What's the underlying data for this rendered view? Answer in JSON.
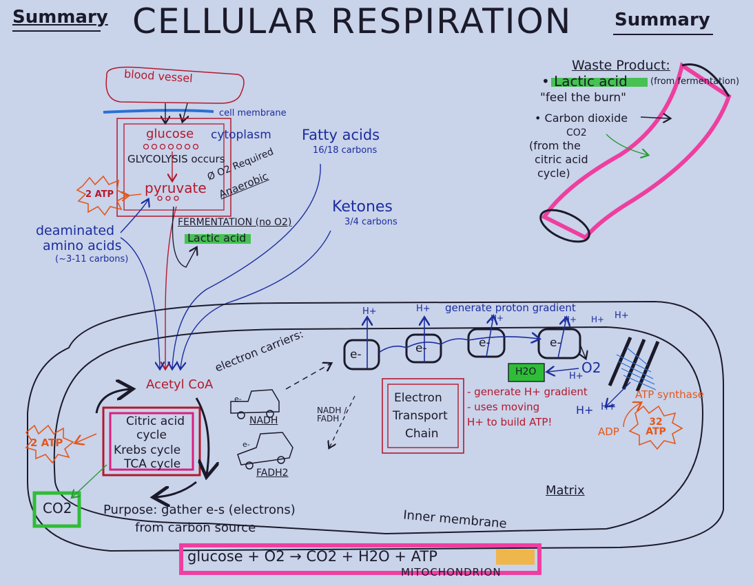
{
  "colors": {
    "background": "#c9d3ea",
    "ink": "#1a1a2a",
    "blue": "#1c2d9e",
    "red": "#b4182c",
    "orange": "#e3581b",
    "pink": "#ee3fa0",
    "green": "#2fbd37",
    "yellow": "#f3b23a"
  },
  "header": {
    "left": "Summary",
    "title": "CELLULAR RESPIRATION",
    "right": "Summary"
  },
  "cell": {
    "blood_vessel": "blood vessel",
    "cell_membrane": "cell membrane",
    "glucose": "glucose",
    "cytoplasm": "cytoplasm",
    "glycolysis": "GLYCOLYSIS occurs",
    "no_o2": "Ø O2 Required",
    "anaerobic": "Anaerobic",
    "pyruvate": "pyruvate",
    "atp": "2 ATP",
    "fermentation": "FERMENTATION (no O2)",
    "lactic_acid": "Lactic acid"
  },
  "inputs": {
    "fatty_acids": "Fatty acids",
    "fatty_carbons": "16/18 carbons",
    "ketones": "Ketones",
    "ketone_carbons": "3/4 carbons",
    "amino_1": "deaminated",
    "amino_2": "amino acids",
    "amino_3": "(~3-11 carbons)"
  },
  "waste": {
    "title": "Waste Product:",
    "lactic": "• Lactic acid",
    "fermentation_note": "(from fermentation)",
    "burn": "\"feel the burn\"",
    "co2_label": "• Carbon dioxide",
    "co2": "CO2",
    "citric_1": "(from the",
    "citric_2": "citric acid",
    "citric_3": "cycle)"
  },
  "krebs": {
    "acetyl": "Acetyl CoA",
    "carriers": "electron carriers:",
    "line1": "Citric acid",
    "line2": "cycle",
    "line3": "Krebs cycle",
    "line4": "TCA cycle",
    "atp": "2 ATP",
    "co2": "CO2",
    "nadh": "NADH",
    "fadh2": "FADH2",
    "electron": "e-",
    "purpose_1": "Purpose: gather e-s (electrons)",
    "purpose_2": "from carbon source"
  },
  "etc": {
    "h_plus": "H+",
    "gradient": "generate proton gradient",
    "electron": "e-",
    "nadh_fadh": "NADH / FADH",
    "title_1": "Electron",
    "title_2": "Transport",
    "title_3": "Chain",
    "note_1": "- generate H+ gradient",
    "note_2": "- uses moving",
    "note_3": "H+ to build ATP!",
    "h2o": "H2O",
    "o2": "O2",
    "atp_synthase": "ATP synthase",
    "adp": "ADP",
    "atp32": "32 ATP"
  },
  "mito": {
    "matrix": "Matrix",
    "inner_membrane": "Inner membrane",
    "equation": "glucose + O2 → CO2 + H2O + ATP",
    "label": "MITOCHONDRION"
  }
}
